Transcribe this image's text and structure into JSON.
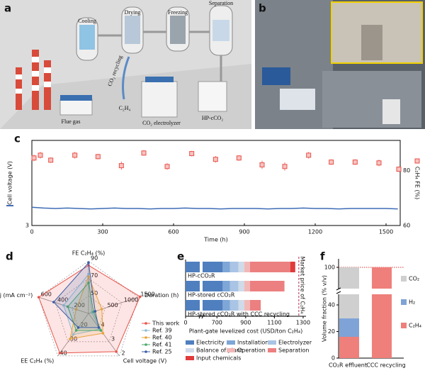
{
  "panel_labels": [
    "a",
    "b",
    "c",
    "d",
    "e",
    "f"
  ],
  "figure_a": {
    "labels": [
      "Cooling",
      "Drying",
      "Freezing",
      "Separation",
      "CO₂ recycling",
      "C₂H₄",
      "Flue gas",
      "CO₂ electrolyzer",
      "HP-cCO₂"
    ]
  },
  "chart_data": [
    {
      "type": "line",
      "xlabel": "Time (h)",
      "ylabel": "Cell voltage (V)",
      "y2label": "C₂H₄ FE (%)",
      "xlim": [
        0,
        1560
      ],
      "xticks": [
        0,
        300,
        600,
        900,
        1200,
        1500
      ],
      "ylim": [
        3,
        5
      ],
      "yticks": [
        3
      ],
      "y2lim": [
        60,
        91
      ],
      "y2ticks": [
        60,
        80
      ],
      "series": [
        {
          "color": "#3e6cb5",
          "x": [
            0,
            50,
            100,
            150,
            200,
            250,
            300,
            350,
            400,
            450,
            500,
            550,
            600,
            650,
            700,
            750,
            800,
            850,
            900,
            950,
            1000,
            1050,
            1100,
            1150,
            1200,
            1250,
            1300,
            1350,
            1400,
            1450,
            1500,
            1550
          ],
          "values": [
            3.43,
            3.41,
            3.4,
            3.41,
            3.4,
            3.39,
            3.4,
            3.41,
            3.4,
            3.4,
            3.39,
            3.4,
            3.4,
            3.41,
            3.4,
            3.4,
            3.39,
            3.4,
            3.4,
            3.4,
            3.39,
            3.4,
            3.4,
            3.41,
            3.4,
            3.4,
            3.39,
            3.4,
            3.4,
            3.4,
            3.4,
            3.39
          ]
        },
        {
          "color": "#e8524a",
          "axis": "y2",
          "marker": "square",
          "x": [
            9,
            36,
            80,
            182,
            280,
            379,
            474,
            573,
            677,
            778,
            877,
            975,
            1071,
            1172,
            1268,
            1369,
            1470,
            1554
          ],
          "values": [
            84.6,
            85.6,
            83.8,
            85.6,
            85.1,
            81.8,
            86.4,
            81.5,
            86.2,
            84.1,
            84.6,
            82.1,
            81.5,
            85.6,
            83.1,
            83.1,
            82.8,
            80.5
          ],
          "errors": [
            1.2,
            1.2,
            1.0,
            1.2,
            1.0,
            1.5,
            1.0,
            1.2,
            1.0,
            1.2,
            1.0,
            1.5,
            1.5,
            1.2,
            1.0,
            1.0,
            1.2,
            1.0
          ]
        }
      ]
    },
    {
      "type": "radar",
      "legend": "right",
      "axes": [
        {
          "label": "FE C₂H₄ (%)",
          "lim": [
            30,
            90
          ],
          "ticks": [
            50,
            70,
            90
          ]
        },
        {
          "label": "Duration (h)",
          "lim": [
            0,
            1500
          ],
          "ticks": [
            500,
            1000,
            1500
          ]
        },
        {
          "label": "Cell voltage (V)",
          "lim": [
            5,
            2
          ],
          "ticks": [
            4,
            3,
            2
          ]
        },
        {
          "label": "EE C₂H₄ (%)",
          "lim": [
            10,
            40
          ],
          "ticks": [
            20,
            30,
            40
          ]
        },
        {
          "label": "j (mA cm⁻²)",
          "lim": [
            0,
            600
          ],
          "ticks": [
            200,
            400,
            600
          ]
        }
      ],
      "series": [
        {
          "name": "This work",
          "color": "#e8524a",
          "values": [
            85,
            1550,
            2.3,
            38,
            600
          ]
        },
        {
          "name": "Ref. 39",
          "color": "#8fbcd4",
          "values": [
            75,
            100,
            3.9,
            25,
            300
          ]
        },
        {
          "name": "Ref. 40",
          "color": "#e8a33c",
          "values": [
            72,
            400,
            3.6,
            28,
            150
          ]
        },
        {
          "name": "Ref. 41",
          "color": "#4aa86a",
          "values": [
            65,
            150,
            3.8,
            22,
            250
          ]
        },
        {
          "name": "Ref. 25",
          "color": "#3b5ea8",
          "values": [
            88,
            200,
            4.0,
            20,
            420
          ]
        }
      ]
    },
    {
      "type": "stacked-barh",
      "legend": "bottom",
      "categories": [
        "HP-cCO₂R",
        "HP-stored cCO₂R",
        "HP-stored cCO₂R with CCC recycling"
      ],
      "xlabel": "Plant-gate levelized cost (USD/ton C₂H₄)",
      "xlim": [
        0,
        1320
      ],
      "xbreak": [
        60,
        600
      ],
      "xticks": [
        0,
        700,
        900,
        1100,
        1300
      ],
      "reference": {
        "value": 1270,
        "label": "Market price of C₂H₄"
      },
      "series": [
        {
          "name": "Electricity",
          "color": "#4f7fbf",
          "values": [
            740,
            740,
            740
          ]
        },
        {
          "name": "Installation",
          "color": "#7ea6d6",
          "values": [
            50,
            50,
            50
          ]
        },
        {
          "name": "Electrolyzer",
          "color": "#a9c4e4",
          "values": [
            60,
            60,
            60
          ]
        },
        {
          "name": "Balance of plant",
          "color": "#cfdbe9",
          "values": [
            40,
            40,
            40
          ]
        },
        {
          "name": "Operation",
          "color": "#f2b8b8",
          "values": [
            40,
            40,
            40
          ]
        },
        {
          "name": "Separation",
          "color": "#ec8080",
          "values": [
            280,
            240,
            75
          ]
        },
        {
          "name": "Input chemicals",
          "color": "#e03a3a",
          "values": [
            35,
            0,
            0
          ]
        }
      ]
    },
    {
      "type": "stacked-bar",
      "legend": "right",
      "categories": [
        "CO₂R effluent",
        "CCC recycling"
      ],
      "ylabel": "Volume fraction (% v/v)",
      "ylim": [
        0,
        102
      ],
      "ybreak": [
        48,
        95
      ],
      "yticks": [
        0,
        20,
        40,
        100
      ],
      "reference": 100,
      "series": [
        {
          "name": "C₂H₄",
          "color": "#ef7f7a",
          "values": [
            16,
            100
          ]
        },
        {
          "name": "H₂",
          "color": "#7fa3d6",
          "values": [
            14,
            0
          ]
        },
        {
          "name": "CO₂",
          "color": "#cfcfcf",
          "values": [
            70,
            0
          ]
        }
      ]
    }
  ]
}
